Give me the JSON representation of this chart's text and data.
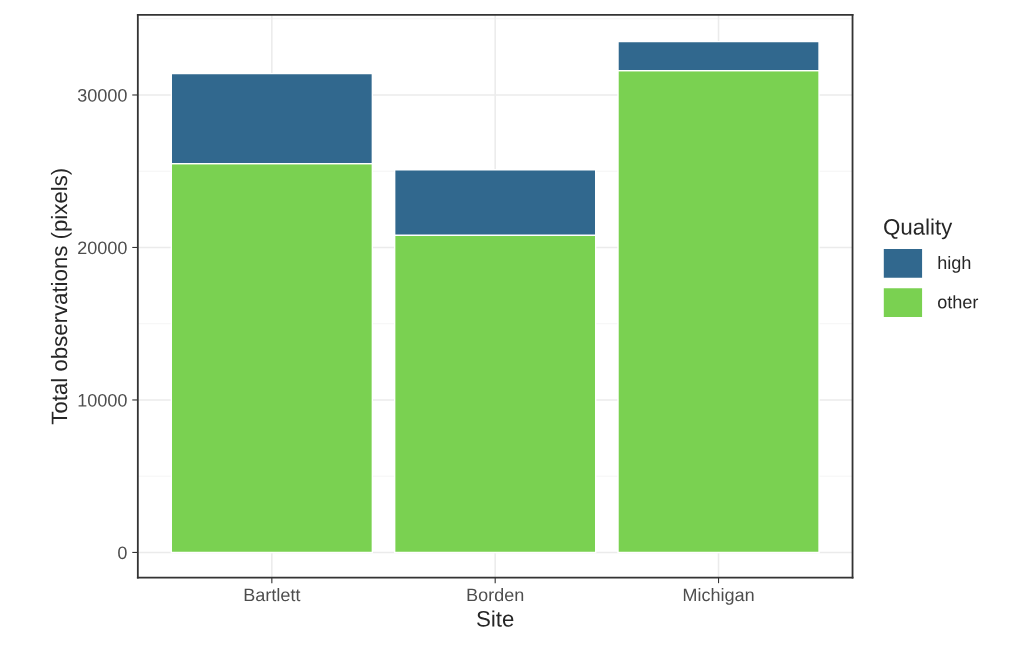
{
  "chart_data": {
    "type": "bar",
    "stacked": true,
    "xlabel": "Site",
    "ylabel": "Total observations (pixels)",
    "legend_title": "Quality",
    "legend": "right",
    "categories": [
      "Bartlett",
      "Borden",
      "Michigan"
    ],
    "series": [
      {
        "name": "other",
        "color": "#7ad151",
        "values": [
          25500,
          20800,
          31600
        ]
      },
      {
        "name": "high",
        "color": "#31688e",
        "values": [
          5900,
          4300,
          1900
        ]
      }
    ],
    "ylim": [
      -1650,
      35250
    ],
    "yticks": [
      0,
      10000,
      20000,
      30000
    ],
    "grid": true
  }
}
